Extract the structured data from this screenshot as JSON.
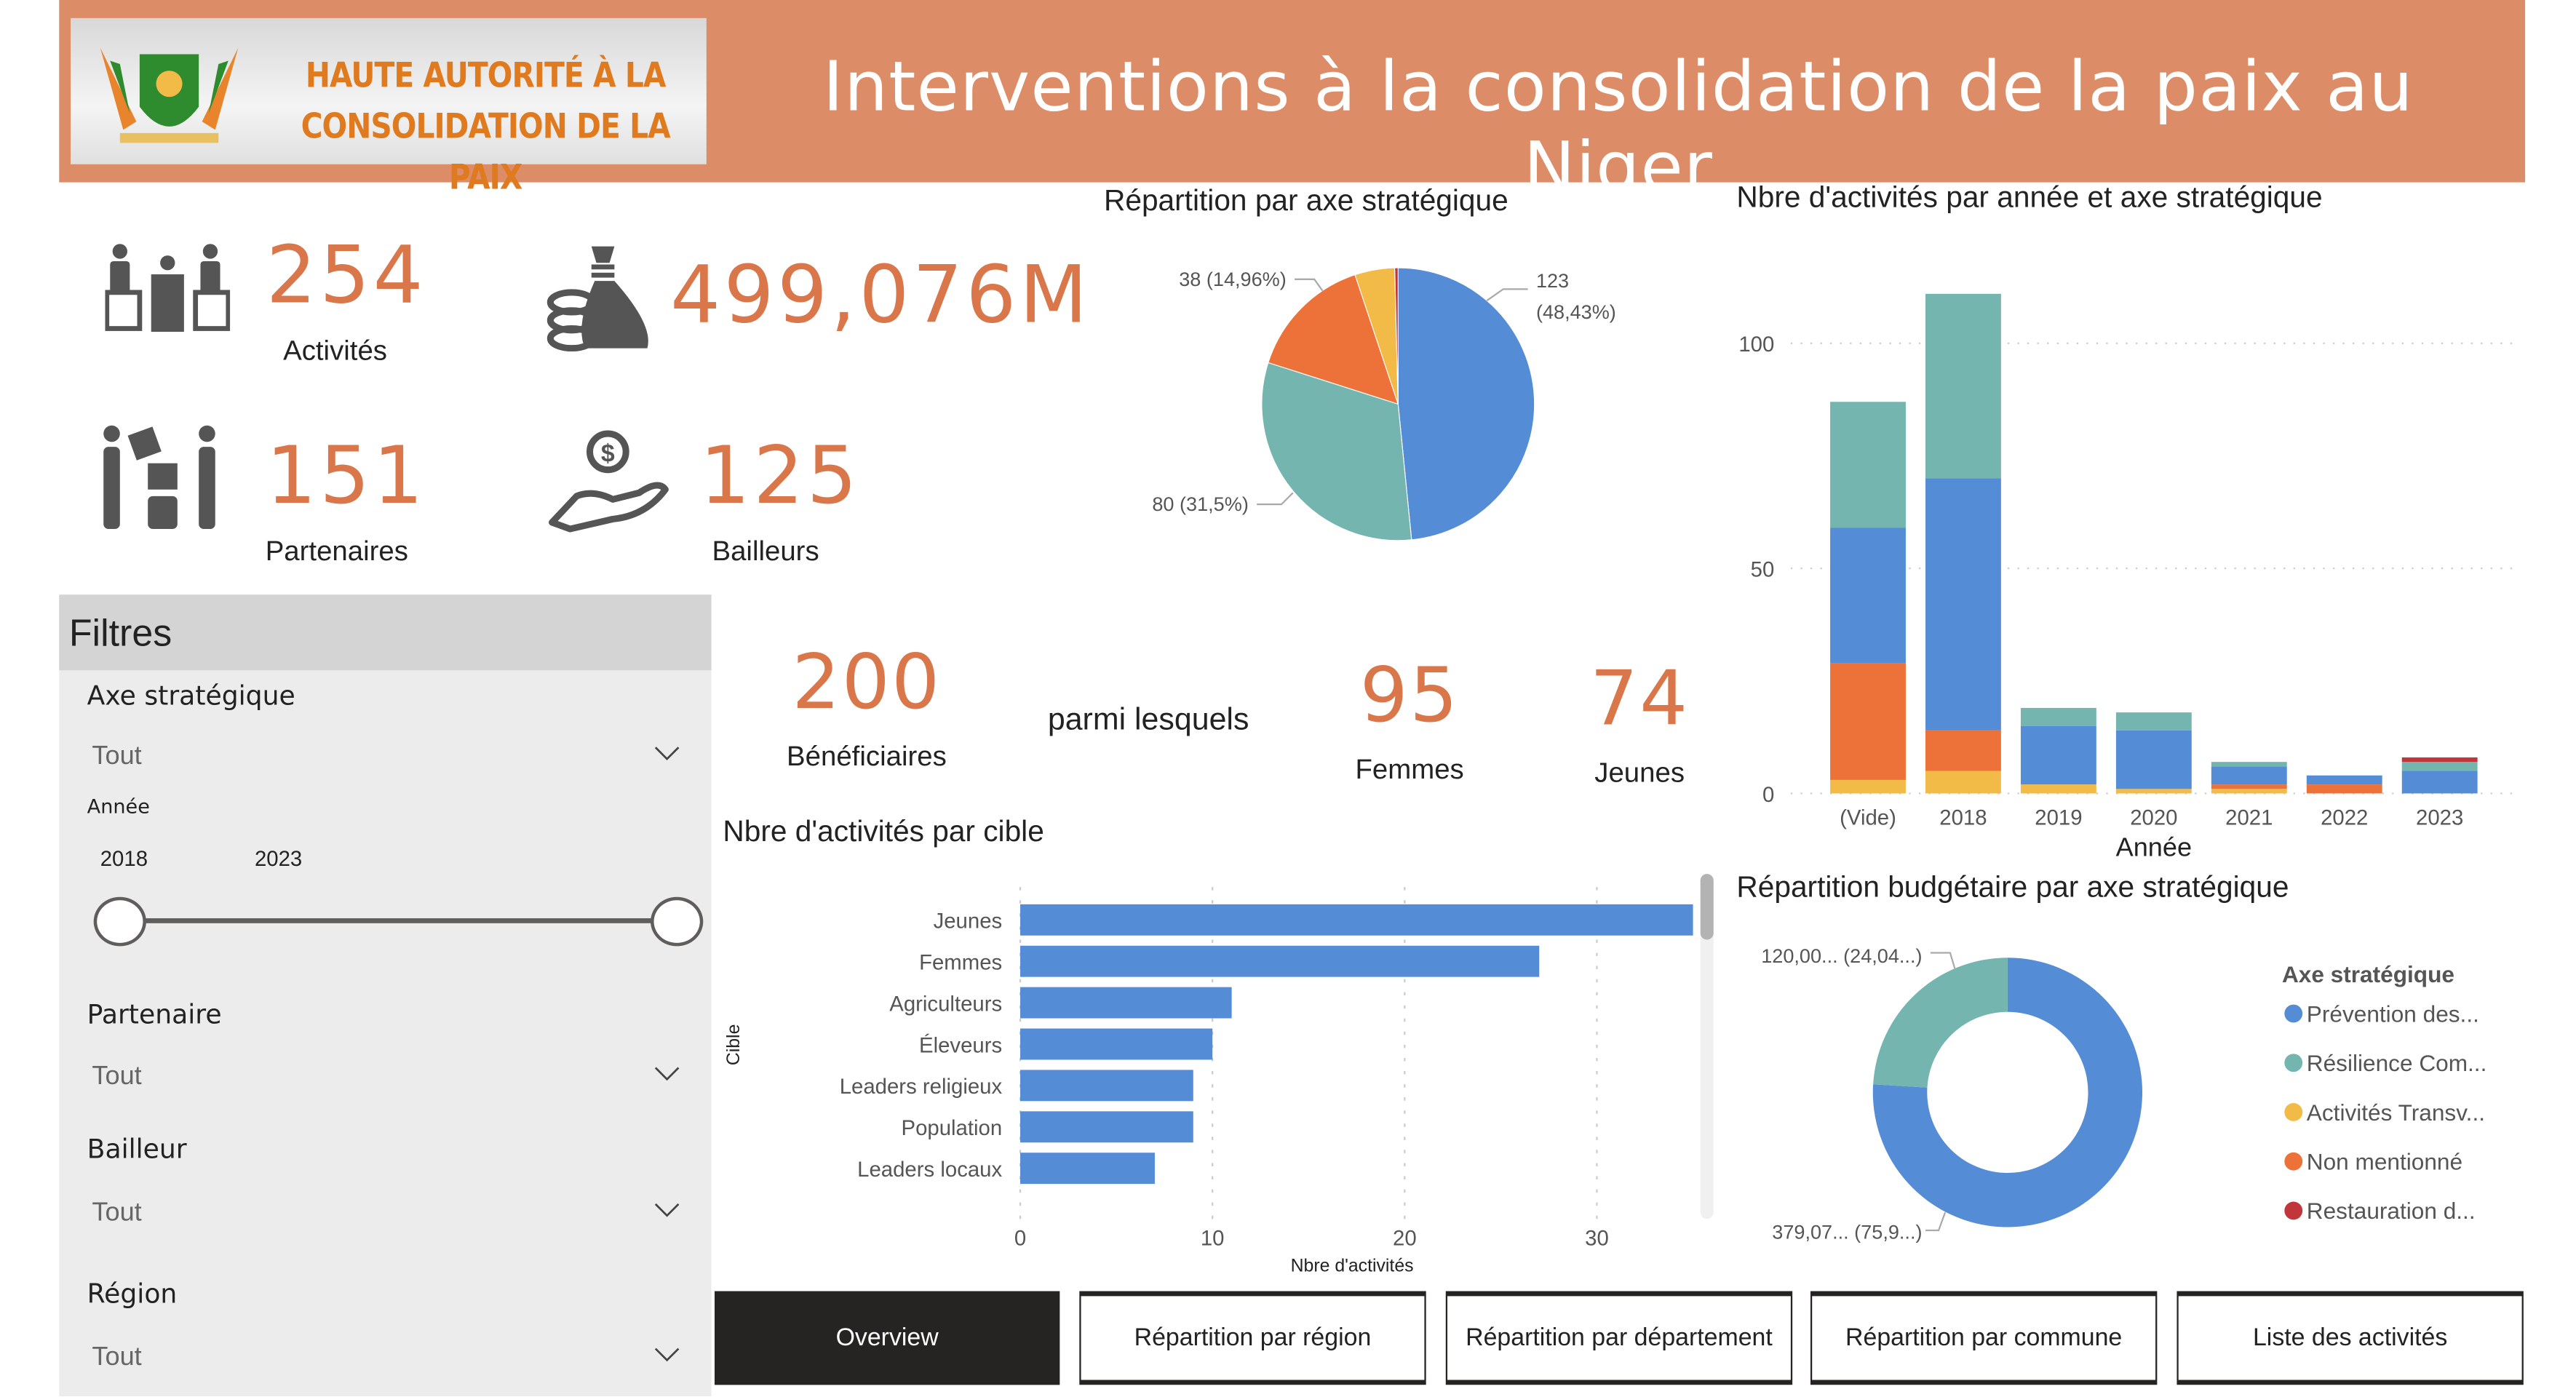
{
  "header": {
    "logo_text_line1": "HAUTE AUTORITÉ À LA",
    "logo_text_line2": "CONSOLIDATION DE LA PAIX",
    "title": "Interventions à la consolidation de la paix au Niger",
    "color": "#DC8C66"
  },
  "kpis": {
    "activites": {
      "value": "254",
      "label": "Activités"
    },
    "budget": {
      "value": "499,076M"
    },
    "partenaires": {
      "value": "151",
      "label": "Partenaires"
    },
    "bailleurs": {
      "value": "125",
      "label": "Bailleurs"
    },
    "beneficiaires": {
      "value": "200",
      "label": "Bénéficiaires"
    },
    "parmi": "parmi lesquels",
    "femmes": {
      "value": "95",
      "label": "Femmes"
    },
    "jeunes": {
      "value": "74",
      "label": "Jeunes"
    }
  },
  "filters": {
    "title": "Filtres",
    "axe": {
      "label": "Axe stratégique",
      "value": "Tout"
    },
    "annee": {
      "label": "Année",
      "from": "2018",
      "to": "2023"
    },
    "partenaire": {
      "label": "Partenaire",
      "value": "Tout"
    },
    "bailleur": {
      "label": "Bailleur",
      "value": "Tout"
    },
    "region": {
      "label": "Région",
      "value": "Tout"
    }
  },
  "nav": {
    "overview": "Overview",
    "region": "Répartition par région",
    "departement": "Répartition par département",
    "commune": "Répartition par commune",
    "liste": "Liste des activités"
  },
  "colors": {
    "prevention": "#558CD6",
    "resilience": "#74B5AF",
    "transversal": "#F2BB48",
    "non_mentionne": "#EC723A",
    "restauration": "#C0363A"
  },
  "chart_data": [
    {
      "type": "pie",
      "title": "Répartition par axe stratégique",
      "slices": [
        {
          "name": "Prévention des...",
          "value": 123,
          "label": "123",
          "label2": "(48,43%)"
        },
        {
          "name": "Résilience Com...",
          "value": 80,
          "label": "80 (31,5%)"
        },
        {
          "name": "Non mentionné",
          "value": 38,
          "label": "38 (14,96%)"
        },
        {
          "name": "Activités Transv...",
          "value": 12
        },
        {
          "name": "Restauration d...",
          "value": 1
        }
      ]
    },
    {
      "type": "bar",
      "title": "Nbre d'activités par année et axe stratégique",
      "xlabel": "Année",
      "ylim": [
        0,
        115
      ],
      "yticks": [
        "0",
        "50",
        "100"
      ],
      "categories": [
        "(Vide)",
        "2018",
        "2019",
        "2020",
        "2021",
        "2022",
        "2023"
      ],
      "series": [
        {
          "name": "Activités Transv...",
          "values": [
            3,
            5,
            2,
            1,
            1,
            0,
            0
          ]
        },
        {
          "name": "Non mentionné",
          "values": [
            26,
            9,
            0,
            0,
            1,
            2,
            0
          ]
        },
        {
          "name": "Prévention des...",
          "values": [
            30,
            56,
            13,
            13,
            4,
            2,
            5
          ]
        },
        {
          "name": "Résilience Com...",
          "values": [
            28,
            41,
            4,
            4,
            1,
            0,
            2
          ]
        },
        {
          "name": "Restauration d...",
          "values": [
            0,
            0,
            0,
            0,
            0,
            0,
            1
          ]
        }
      ]
    },
    {
      "type": "bar",
      "orientation": "horizontal",
      "title": "Nbre d'activités par cible",
      "xlabel": "Nbre d'activités",
      "ylabel": "Cible",
      "xticks": [
        "0",
        "10",
        "20",
        "30"
      ],
      "categories": [
        "Jeunes",
        "Femmes",
        "Agriculteurs",
        "Éleveurs",
        "Leaders religieux",
        "Population",
        "Leaders locaux"
      ],
      "values": [
        35,
        27,
        11,
        10,
        9,
        9,
        7
      ]
    },
    {
      "type": "pie",
      "donut": true,
      "title": "Répartition budgétaire par axe stratégique",
      "legend_title": "Axe stratégique",
      "slices": [
        {
          "name": "Prévention des...",
          "value": 75.96,
          "label": "379,07... (75,9...)"
        },
        {
          "name": "Résilience Com...",
          "value": 24.04,
          "label": "120,00... (24,04...)"
        }
      ],
      "legend": [
        "Prévention des...",
        "Résilience Com...",
        "Activités Transv...",
        "Non mentionné",
        "Restauration d..."
      ]
    }
  ]
}
